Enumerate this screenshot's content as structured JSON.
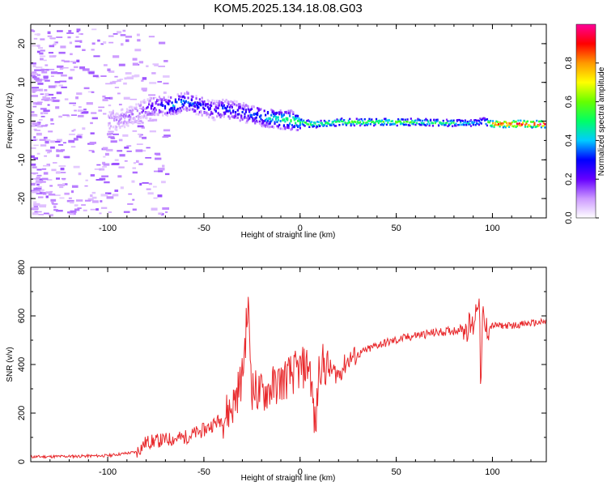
{
  "figure": {
    "title": "KOM5.2025.134.18.08.G03"
  },
  "chart_data": [
    {
      "type": "heatmap",
      "xlabel": "Height of straight line (km)",
      "ylabel": "Frequency (Hz)",
      "xlim": [
        -140,
        128
      ],
      "ylim": [
        -25,
        25
      ],
      "xticks": [
        -100,
        -50,
        0,
        50,
        100
      ],
      "yticks": [
        -20,
        -10,
        0,
        10,
        20
      ],
      "colorbar": {
        "label": "Normalized spectral amplitude",
        "range": [
          0,
          1
        ],
        "ticks": [
          0.0,
          0.2,
          0.4,
          0.6,
          0.8
        ],
        "tick_labels": [
          "0.0",
          "0.2",
          "0.4",
          "0.6",
          "0.8"
        ],
        "colors": [
          "#ffffff",
          "#cc99ff",
          "#6600ff",
          "#0000ff",
          "#00ccff",
          "#00ff66",
          "#66ff00",
          "#ffff00",
          "#ff9900",
          "#ff0000",
          "#ff0099"
        ]
      },
      "ridge": {
        "x": [
          -95,
          -85,
          -75,
          -70,
          -65,
          -60,
          -55,
          -50,
          -45,
          -40,
          -35,
          -30,
          -25,
          -20,
          -15,
          -10,
          -5,
          0,
          5,
          10,
          20,
          30,
          40,
          50,
          60,
          70,
          80,
          90,
          95,
          100,
          110,
          128
        ],
        "frequency": [
          0.5,
          2.5,
          4.5,
          4.0,
          4.5,
          5.5,
          4.5,
          4.0,
          3.0,
          3.5,
          3.0,
          2.5,
          2.0,
          1.5,
          1.0,
          0.8,
          0.5,
          0.0,
          -0.5,
          -0.5,
          0.0,
          0.0,
          0.0,
          0.0,
          0.0,
          -0.2,
          -0.2,
          -0.3,
          0.2,
          -0.5,
          -0.5,
          -0.5
        ],
        "amplitude": [
          0.1,
          0.15,
          0.25,
          0.35,
          0.4,
          0.35,
          0.3,
          0.3,
          0.25,
          0.35,
          0.3,
          0.3,
          0.35,
          0.4,
          0.45,
          0.5,
          0.55,
          0.55,
          0.6,
          0.55,
          0.6,
          0.6,
          0.6,
          0.6,
          0.55,
          0.55,
          0.5,
          0.45,
          0.4,
          0.9,
          1.0,
          1.0
        ]
      },
      "grid": false
    },
    {
      "type": "line",
      "xlabel": "Height of straight line (km)",
      "ylabel": "SNR (v/v)",
      "xlim": [
        -140,
        128
      ],
      "ylim": [
        0,
        800
      ],
      "xticks": [
        -100,
        -50,
        0,
        50,
        100
      ],
      "yticks": [
        0,
        200,
        400,
        600,
        800
      ],
      "line_color": "#e8282b",
      "series": [
        {
          "x": [
            -140,
            -120,
            -100,
            -85,
            -80,
            -70,
            -60,
            -50,
            -40,
            -35,
            -30,
            -28,
            -27,
            -25,
            -20,
            -10,
            0,
            5,
            8,
            10,
            15,
            20,
            25,
            30,
            40,
            50,
            60,
            70,
            80,
            90,
            93,
            94,
            95,
            96,
            100,
            110,
            120,
            128
          ],
          "y": [
            20,
            22,
            25,
            40,
            80,
            90,
            100,
            130,
            180,
            230,
            350,
            550,
            640,
            300,
            280,
            330,
            380,
            400,
            120,
            410,
            380,
            360,
            420,
            440,
            480,
            500,
            520,
            530,
            540,
            560,
            700,
            280,
            620,
            540,
            560,
            560,
            570,
            575
          ]
        }
      ],
      "grid": false
    }
  ]
}
